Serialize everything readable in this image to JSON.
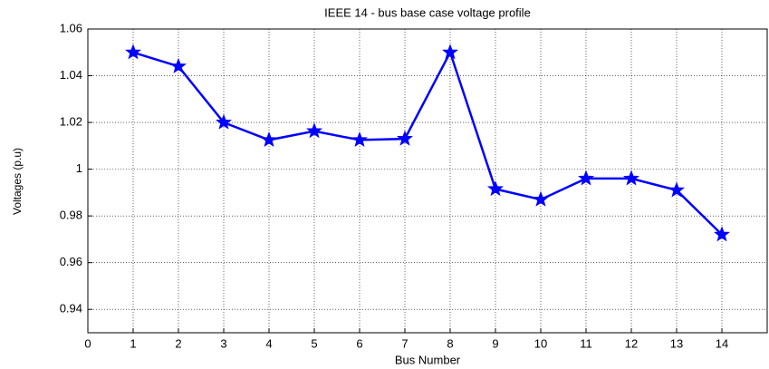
{
  "chart_data": {
    "type": "line",
    "title": "IEEE 14 - bus base case voltage profile",
    "xlabel": "Bus Number",
    "ylabel": "Voltages (p.u)",
    "x": [
      1,
      2,
      3,
      4,
      5,
      6,
      7,
      8,
      9,
      10,
      11,
      12,
      13,
      14
    ],
    "series": [
      {
        "name": "Voltage",
        "color": "#0000ff",
        "values": [
          1.05,
          1.044,
          1.02,
          1.0125,
          1.0163,
          1.0125,
          1.013,
          1.05,
          0.9915,
          0.987,
          0.996,
          0.996,
          0.991,
          0.972
        ]
      }
    ],
    "xlim": [
      0,
      15
    ],
    "xticks": [
      0,
      1,
      2,
      3,
      4,
      5,
      6,
      7,
      8,
      9,
      10,
      11,
      12,
      13,
      14
    ],
    "ylim": [
      0.93,
      1.06
    ],
    "yticks": [
      0.94,
      0.96,
      0.98,
      1,
      1.02,
      1.04,
      1.06
    ],
    "grid": true,
    "marker": "star"
  }
}
